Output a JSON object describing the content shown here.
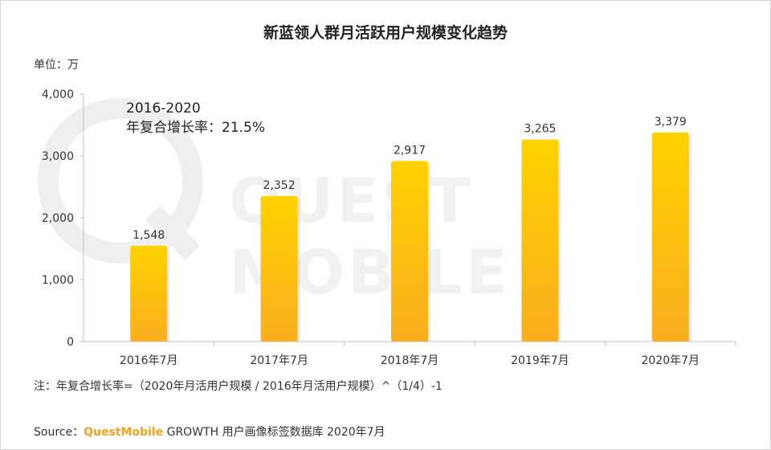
{
  "title": "新蓝领人群月活跃用户规模变化趋势",
  "unit_label": "单位：万",
  "cagr": {
    "period": "2016-2020",
    "label": "年复合增长率：",
    "value": "21.5%"
  },
  "watermark": "QUEST MOBILE",
  "note": "注：年复合增长率=（2020年月活用户规模 / 2016年月活用户规模）^（1/4）-1",
  "source": {
    "prefix": "Source：",
    "brand": "QuestMobile",
    "rest": " GROWTH 用户画像标签数据库 2020年7月"
  },
  "colors": {
    "bar_top": "#ffd200",
    "bar_bottom": "#f9ae1f",
    "axis": "#bfbfbf"
  },
  "chart_data": {
    "type": "bar",
    "categories": [
      "2016年7月",
      "2017年7月",
      "2018年7月",
      "2019年7月",
      "2020年7月"
    ],
    "values": [
      1548,
      2352,
      2917,
      3265,
      3379
    ],
    "data_labels": [
      "1,548",
      "2,352",
      "2,917",
      "3,265",
      "3,379"
    ],
    "y_ticks": [
      0,
      1000,
      2000,
      3000,
      4000
    ],
    "y_tick_labels": [
      "0",
      "1,000",
      "2,000",
      "3,000",
      "4,000"
    ],
    "ylim": [
      0,
      4000
    ],
    "title": "新蓝领人群月活跃用户规模变化趋势",
    "xlabel": "",
    "ylabel": "",
    "grid": false,
    "legend": "none"
  }
}
